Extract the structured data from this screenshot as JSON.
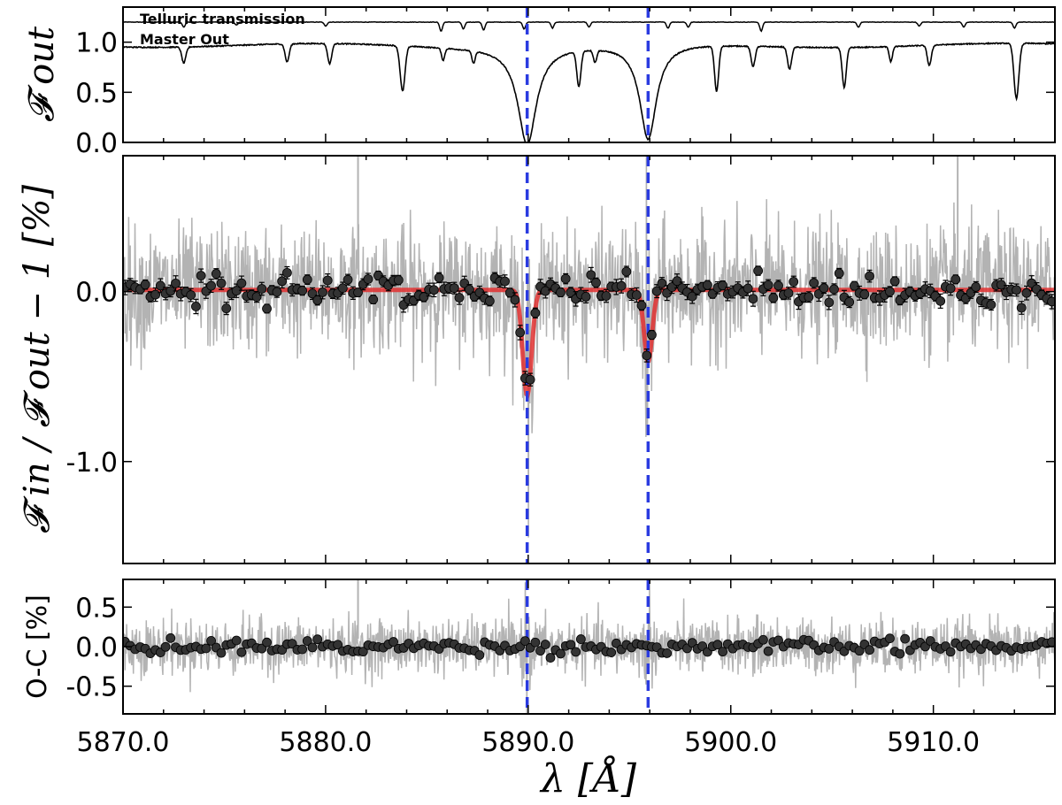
{
  "chart_data": [
    {
      "type": "line",
      "panel": "top",
      "ylabel": "𝓕 out",
      "xlim": [
        5870,
        5916
      ],
      "ylim": [
        0,
        1.35
      ],
      "yticks": [
        0.0,
        0.5,
        1.0
      ],
      "ytick_labels": [
        "0.0",
        "0.5",
        "1.0"
      ],
      "series": [
        {
          "name": "Telluric transmission",
          "color": "#000000",
          "baseline": 1.2,
          "lines": [
            {
              "x": 5873.0,
              "depth": 0.05
            },
            {
              "x": 5875.6,
              "depth": 0.03
            },
            {
              "x": 5880.0,
              "depth": 0.04
            },
            {
              "x": 5885.7,
              "depth": 0.09
            },
            {
              "x": 5886.8,
              "depth": 0.07
            },
            {
              "x": 5887.8,
              "depth": 0.08
            },
            {
              "x": 5889.8,
              "depth": 0.07
            },
            {
              "x": 5891.2,
              "depth": 0.06
            },
            {
              "x": 5893.0,
              "depth": 0.05
            },
            {
              "x": 5896.9,
              "depth": 0.06
            },
            {
              "x": 5897.9,
              "depth": 0.05
            },
            {
              "x": 5901.5,
              "depth": 0.09
            },
            {
              "x": 5906.3,
              "depth": 0.05
            },
            {
              "x": 5909.3,
              "depth": 0.04
            },
            {
              "x": 5911.5,
              "depth": 0.05
            },
            {
              "x": 5914.0,
              "depth": 0.06
            }
          ]
        },
        {
          "name": "Master Out",
          "color": "#000000",
          "baseline": 0.97,
          "lines": [
            {
              "x": 5873.0,
              "depth": 0.16,
              "w": 0.1
            },
            {
              "x": 5878.1,
              "depth": 0.18,
              "w": 0.1
            },
            {
              "x": 5880.2,
              "depth": 0.2,
              "w": 0.1
            },
            {
              "x": 5883.8,
              "depth": 0.45,
              "w": 0.12
            },
            {
              "x": 5885.8,
              "depth": 0.12,
              "w": 0.08
            },
            {
              "x": 5887.3,
              "depth": 0.12,
              "w": 0.08
            },
            {
              "x": 5892.5,
              "depth": 0.35,
              "w": 0.1
            },
            {
              "x": 5893.3,
              "depth": 0.12,
              "w": 0.08
            },
            {
              "x": 5899.3,
              "depth": 0.45,
              "w": 0.1
            },
            {
              "x": 5901.1,
              "depth": 0.2,
              "w": 0.1
            },
            {
              "x": 5902.9,
              "depth": 0.22,
              "w": 0.1
            },
            {
              "x": 5905.6,
              "depth": 0.4,
              "w": 0.1
            },
            {
              "x": 5907.9,
              "depth": 0.15,
              "w": 0.08
            },
            {
              "x": 5909.8,
              "depth": 0.2,
              "w": 0.1
            },
            {
              "x": 5914.1,
              "depth": 0.55,
              "w": 0.12
            }
          ],
          "broad_lines": [
            {
              "x": 5889.95,
              "depth": 0.97,
              "gamma": 0.55
            },
            {
              "x": 5895.92,
              "depth": 0.95,
              "gamma": 0.5
            }
          ]
        }
      ],
      "vlines": [
        5889.95,
        5895.92
      ]
    },
    {
      "type": "scatter",
      "panel": "middle",
      "ylabel": "𝓕 in / 𝓕 out − 1 [%]",
      "xlim": [
        5870,
        5916
      ],
      "ylim": [
        -1.6,
        0.8
      ],
      "yticks": [
        0.0,
        -1.0
      ],
      "ytick_labels": [
        "0.0",
        "-1.0"
      ],
      "raw_noise_sigma": 0.18,
      "binned_offset": 0.0,
      "model": {
        "color": "#e03030",
        "baseline": 0.01,
        "features": [
          {
            "x": 5889.95,
            "depth": 0.62,
            "sigma": 0.22
          },
          {
            "x": 5895.92,
            "depth": 0.42,
            "sigma": 0.2
          }
        ]
      },
      "binned_points": {
        "x_start": 5870.1,
        "x_step": 0.25,
        "count": 184,
        "errorbar": 0.03
      },
      "vlines": [
        5889.95,
        5895.92
      ]
    },
    {
      "type": "scatter",
      "panel": "bottom",
      "ylabel": "O-C [%]",
      "xlabel": "λ [Å]",
      "xlim": [
        5870,
        5916
      ],
      "ylim": [
        -0.85,
        0.85
      ],
      "yticks": [
        0.5,
        0.0,
        -0.5
      ],
      "ytick_labels": [
        "0.5",
        "0.0",
        "-0.5"
      ],
      "xticks": [
        5870.0,
        5880.0,
        5890.0,
        5900.0,
        5910.0
      ],
      "xtick_labels": [
        "5870.0",
        "5880.0",
        "5890.0",
        "5900.0",
        "5910.0"
      ],
      "raw_noise_sigma": 0.17,
      "binned_points": {
        "x_start": 5870.1,
        "x_step": 0.25,
        "count": 184
      },
      "vlines": [
        5889.95,
        5895.92
      ]
    }
  ],
  "colors": {
    "raw": "#b3b3b3",
    "binned": "#333333",
    "model": "#e03030",
    "vline": "#2a3be0",
    "axis": "#000000"
  },
  "legend": {
    "telluric": "Telluric transmission",
    "master_out": "Master Out"
  }
}
